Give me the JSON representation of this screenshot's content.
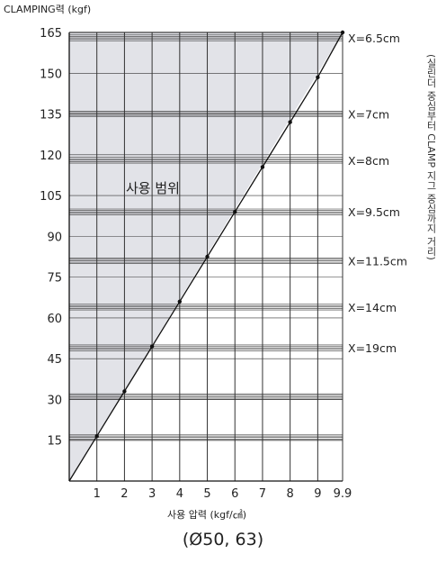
{
  "chart_data": {
    "type": "line",
    "title": "",
    "ylabel": "CLAMPING력 (kgf)",
    "xlabel": "사용 압력 (kgf/㎠)",
    "x_ticks": [
      "1",
      "2",
      "3",
      "4",
      "5",
      "6",
      "7",
      "8",
      "9",
      "9.9"
    ],
    "y_ticks": [
      "15",
      "30",
      "45",
      "60",
      "75",
      "90",
      "105",
      "120",
      "135",
      "150",
      "165"
    ],
    "xlim": [
      0,
      9.9
    ],
    "ylim": [
      0,
      165
    ],
    "grid": true,
    "series": [
      {
        "x": [
          0,
          1,
          2,
          3,
          4,
          5,
          6,
          7,
          8,
          9,
          9.9
        ],
        "y": [
          0,
          16.5,
          33,
          49.5,
          66,
          82.5,
          99,
          115.5,
          132,
          148.5,
          165
        ]
      }
    ],
    "x_limit_lines": [
      {
        "label": "X=6.5cm",
        "y": 163
      },
      {
        "label": "X=7cm",
        "y": 135
      },
      {
        "label": "X=8cm",
        "y": 118
      },
      {
        "label": "X=9.5cm",
        "y": 99
      },
      {
        "label": "X=11.5cm",
        "y": 81
      },
      {
        "label": "X=14cm",
        "y": 64
      },
      {
        "label": "X=19cm",
        "y": 49
      },
      {
        "label": "",
        "y": 31
      },
      {
        "label": "",
        "y": 16
      }
    ],
    "region_label": "사용 범위",
    "region_color": "#e2e3e8"
  },
  "caption": "(Ø50, 63)",
  "side_note": "(실린더 중심부터 CLAMP 지그 중심까지 거리)"
}
